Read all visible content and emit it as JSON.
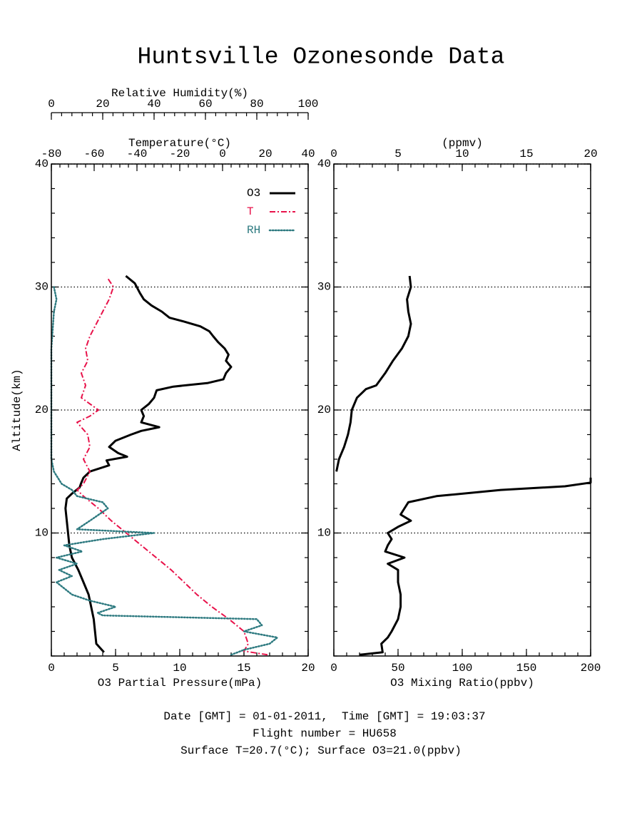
{
  "title": "Huntsville Ozonesonde Data",
  "chart_data": [
    {
      "type": "line",
      "grid": true,
      "legend": "upper right",
      "y_label": "Altitude(km)",
      "ylim": [
        0,
        40
      ],
      "yticks": [
        10,
        20,
        30,
        40
      ],
      "x_label": "O3 Partial Pressure(mPa)",
      "xlim": [
        0,
        20
      ],
      "xticks": [
        0,
        5,
        10,
        15,
        20
      ],
      "x2label": "Temperature(°C)",
      "x2lim": [
        -80,
        40
      ],
      "x2ticks": [
        -80,
        -60,
        -40,
        -20,
        0,
        20,
        40
      ],
      "x3label": "Relative Humidity(%)",
      "x3lim": [
        0,
        100
      ],
      "x3ticks": [
        0,
        20,
        40,
        60,
        80,
        100
      ],
      "series": [
        {
          "name": "O3",
          "color": "#000000",
          "style": "solid",
          "axis": "x",
          "altitude": [
            0.3,
            1,
            2,
            3,
            4,
            5,
            6,
            7,
            8,
            9,
            10,
            11,
            12,
            12.8,
            13.2,
            13.7,
            14,
            14.5,
            15,
            15.5,
            15.9,
            16.2,
            16.5,
            17,
            17.5,
            18,
            18.3,
            18.6,
            19,
            19.5,
            20,
            20.5,
            21,
            21.6,
            21.9,
            22.2,
            22.5,
            23,
            23.5,
            24,
            24.5,
            25,
            25.5,
            26,
            26.4,
            26.8,
            27.2,
            27.5,
            28,
            28.5,
            29,
            29.5,
            30.3,
            30.9
          ],
          "values": [
            4.1,
            3.5,
            3.4,
            3.3,
            3.1,
            2.9,
            2.5,
            2.1,
            1.6,
            1.4,
            1.3,
            1.2,
            1.1,
            1.2,
            1.6,
            2.2,
            2.3,
            2.5,
            3.0,
            4.5,
            4.3,
            5.9,
            5.2,
            4.5,
            5.0,
            6.2,
            7.0,
            8.4,
            7.0,
            7.2,
            7.0,
            7.6,
            8.0,
            8.2,
            9.5,
            12.2,
            13.4,
            13.6,
            14.0,
            13.6,
            13.8,
            13.5,
            13.0,
            12.6,
            12.3,
            11.6,
            10.3,
            9.2,
            8.6,
            7.8,
            7.2,
            6.9,
            6.5,
            5.8
          ]
        },
        {
          "name": "T",
          "color": "#e8124a",
          "style": "dash-dot",
          "axis": "x2",
          "altitude": [
            0.1,
            0.4,
            1,
            2,
            3,
            4,
            5,
            6,
            7,
            8,
            9,
            10,
            11,
            12,
            13,
            13.5,
            14,
            15,
            16,
            17,
            18,
            19,
            19.5,
            20,
            20.5,
            21,
            22,
            23,
            24,
            25,
            26,
            27,
            28,
            29,
            30,
            30.8
          ],
          "values": [
            21,
            10,
            12,
            10,
            3,
            -5,
            -12,
            -18,
            -24,
            -31,
            -38,
            -45,
            -52,
            -58,
            -65,
            -68,
            -65,
            -62,
            -65,
            -62,
            -63,
            -68,
            -62,
            -58,
            -62,
            -66,
            -64,
            -66,
            -63,
            -64,
            -62,
            -59,
            -56,
            -53,
            -51,
            -54
          ]
        },
        {
          "name": "RH",
          "color": "#2e7a80",
          "style": "dotted",
          "axis": "x3",
          "altitude": [
            0.1,
            0.5,
            1,
            1.5,
            2,
            2.5,
            3,
            3.3,
            3.5,
            4,
            4.5,
            5,
            6,
            6.5,
            7,
            7.5,
            8,
            8.5,
            9,
            9.5,
            10,
            10.3,
            11,
            12,
            12.5,
            13,
            13.5,
            14,
            15,
            16,
            20,
            25,
            28,
            29,
            30
          ],
          "values": [
            70,
            75,
            85,
            88,
            75,
            82,
            80,
            20,
            18,
            25,
            15,
            8,
            2,
            8,
            3,
            10,
            2,
            12,
            5,
            20,
            40,
            10,
            15,
            22,
            20,
            10,
            8,
            4,
            1,
            0,
            0,
            0,
            1,
            2,
            1
          ]
        }
      ]
    },
    {
      "type": "line",
      "grid": true,
      "ylim": [
        0,
        40
      ],
      "yticks": [
        10,
        20,
        30,
        40
      ],
      "x_label": "O3 Mixing Ratio(ppbv)",
      "xlim": [
        0,
        200
      ],
      "xticks": [
        0,
        50,
        100,
        150,
        200
      ],
      "x2label": "(ppmv)",
      "x2lim": [
        0,
        20
      ],
      "x2ticks": [
        0,
        5,
        10,
        15,
        20
      ],
      "series": [
        {
          "color": "#000000",
          "style": "solid",
          "axis": "x",
          "altitude": [
            0.1,
            0.3,
            1,
            1.5,
            2,
            3,
            4,
            5,
            6,
            7,
            7.5,
            8,
            8.5,
            9,
            9.5,
            10,
            10.5,
            11,
            11.5,
            12,
            12.5,
            13,
            13.5,
            13.8,
            14.1,
            14.5
          ],
          "values": [
            20,
            38,
            37,
            42,
            45,
            50,
            52,
            52,
            50,
            50,
            42,
            55,
            40,
            42,
            45,
            42,
            50,
            60,
            52,
            55,
            58,
            80,
            130,
            180,
            200,
            200
          ]
        },
        {
          "color": "#000000",
          "style": "solid",
          "axis": "x2",
          "altitude": [
            15,
            16,
            17,
            18,
            19,
            20,
            21,
            21.7,
            22,
            23,
            24,
            25,
            26,
            27,
            28,
            29,
            30,
            30.9
          ],
          "values": [
            0.2,
            0.4,
            0.8,
            1.1,
            1.3,
            1.4,
            1.8,
            2.5,
            3.3,
            4.0,
            4.6,
            5.3,
            5.8,
            6.0,
            5.8,
            5.7,
            6.0,
            5.9
          ]
        }
      ]
    }
  ],
  "footer": [
    "Date [GMT] = 01-01-2011,  Time [GMT] = 19:03:37",
    "Flight number = HU658",
    "Surface T=20.7(°C); Surface O3=21.0(ppbv)"
  ]
}
